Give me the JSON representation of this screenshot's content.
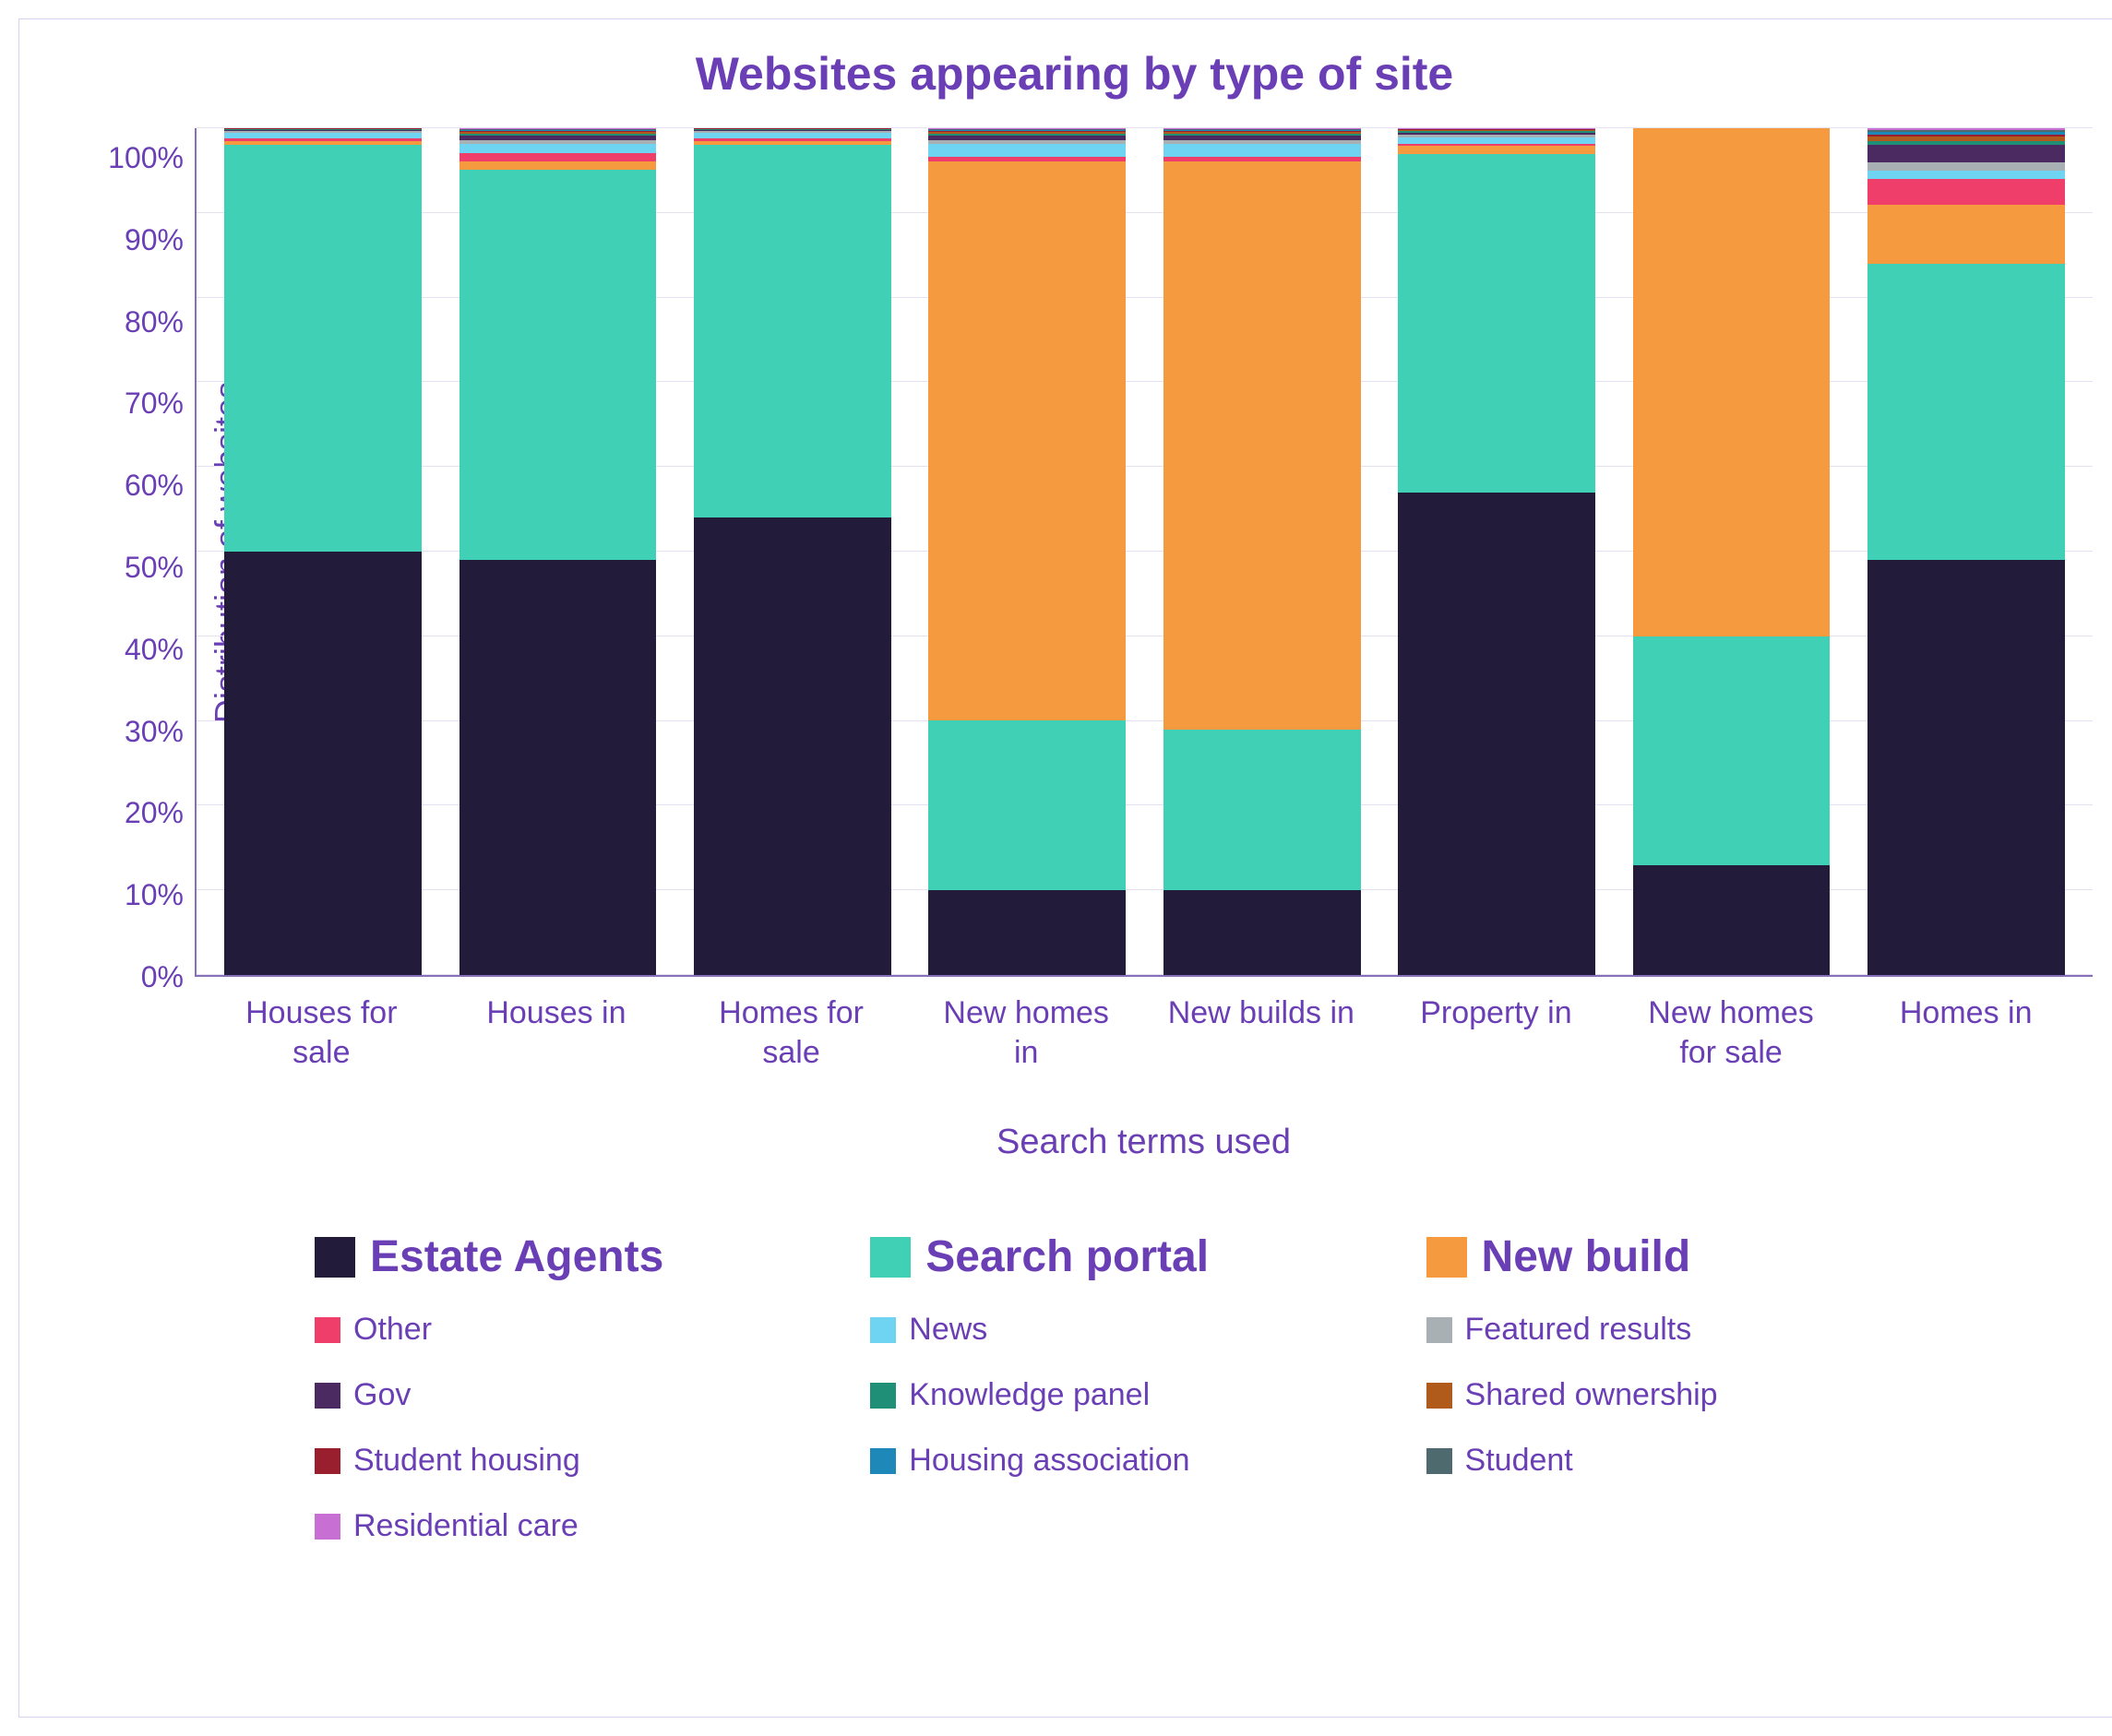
{
  "chart": {
    "type": "stacked-bar-100pct",
    "title": "Websites appearing by type of site",
    "title_color": "#6a3fb5",
    "title_fontsize": 50,
    "x_axis_label": "Search terms used",
    "y_axis_label": "Distribution of websites",
    "axis_label_color": "#6a3fb5",
    "tick_label_color": "#6a3fb5",
    "axis_line_color": "#8870b8",
    "grid_color": "#e5e0f2",
    "background_color": "#ffffff",
    "border_color": "#d8d0f0",
    "ylim": [
      0,
      100
    ],
    "ytick_step": 10,
    "y_tick_labels": [
      "100%",
      "90%",
      "80%",
      "70%",
      "60%",
      "50%",
      "40%",
      "30%",
      "20%",
      "10%",
      "0%"
    ],
    "categories": [
      "Houses for sale",
      "Houses in",
      "Homes for sale",
      "New homes in",
      "New builds in",
      "Property in",
      "New homes for sale",
      "Homes in"
    ],
    "series_order": [
      "estate_agents",
      "search_portal",
      "new_build",
      "other",
      "news",
      "featured_results",
      "gov",
      "knowledge_panel",
      "shared_ownership",
      "student_housing",
      "housing_association",
      "student",
      "residential_care"
    ],
    "series": {
      "estate_agents": {
        "label": "Estate Agents",
        "color": "#221c3a",
        "primary": true
      },
      "search_portal": {
        "label": "Search portal",
        "color": "#3fd0b6",
        "primary": true
      },
      "new_build": {
        "label": "New build",
        "color": "#f59a3e",
        "primary": true
      },
      "other": {
        "label": "Other",
        "color": "#ef3e6a",
        "primary": false
      },
      "news": {
        "label": "News",
        "color": "#6fd4f2",
        "primary": false
      },
      "featured_results": {
        "label": "Featured results",
        "color": "#a8b0b4",
        "primary": false
      },
      "gov": {
        "label": "Gov",
        "color": "#4a2a60",
        "primary": false
      },
      "knowledge_panel": {
        "label": "Knowledge panel",
        "color": "#1f8f77",
        "primary": false
      },
      "shared_ownership": {
        "label": "Shared ownership",
        "color": "#b05a1c",
        "primary": false
      },
      "student_housing": {
        "label": "Student housing",
        "color": "#9a1f2e",
        "primary": false
      },
      "housing_association": {
        "label": "Housing association",
        "color": "#1e88b8",
        "primary": false
      },
      "student": {
        "label": "Student",
        "color": "#4f6a6f",
        "primary": false
      },
      "residential_care": {
        "label": "Residential care",
        "color": "#c86fd4",
        "primary": false
      }
    },
    "values": {
      "estate_agents": [
        50,
        49,
        54,
        10,
        10,
        57,
        13,
        49
      ],
      "search_portal": [
        48,
        46,
        44,
        20,
        19,
        40,
        27,
        35
      ],
      "new_build": [
        0.5,
        1,
        0.5,
        66,
        67,
        1,
        60,
        7
      ],
      "other": [
        0.3,
        1,
        0.3,
        0.5,
        0.5,
        0.3,
        0,
        3
      ],
      "news": [
        0.7,
        1,
        0.7,
        1.5,
        1.5,
        0.7,
        0,
        1
      ],
      "featured_results": [
        0.2,
        0.5,
        0.2,
        0.5,
        0.5,
        0.3,
        0,
        1
      ],
      "gov": [
        0.1,
        0.5,
        0.1,
        0.5,
        0.5,
        0.3,
        0,
        2
      ],
      "knowledge_panel": [
        0.1,
        0.3,
        0.1,
        0.3,
        0.3,
        0.2,
        0,
        0.5
      ],
      "shared_ownership": [
        0.05,
        0.2,
        0.05,
        0.2,
        0.2,
        0.1,
        0,
        0.5
      ],
      "student_housing": [
        0.02,
        0.1,
        0.02,
        0.1,
        0.1,
        0.05,
        0,
        0.3
      ],
      "housing_association": [
        0.02,
        0.1,
        0.02,
        0.1,
        0.1,
        0.05,
        0,
        0.3
      ],
      "student": [
        0.005,
        0.1,
        0.005,
        0.1,
        0.1,
        0.05,
        0,
        0.2
      ],
      "residential_care": [
        0.005,
        0.1,
        0.005,
        0.1,
        0.1,
        0.05,
        0,
        0.2
      ]
    },
    "bar_width_pct": 10.5,
    "legend_layout": [
      [
        "estate_agents",
        "search_portal",
        "new_build"
      ],
      [
        "other",
        "news",
        "featured_results"
      ],
      [
        "gov",
        "knowledge_panel",
        "shared_ownership"
      ],
      [
        "student_housing",
        "housing_association",
        "student"
      ],
      [
        "residential_care"
      ]
    ]
  }
}
